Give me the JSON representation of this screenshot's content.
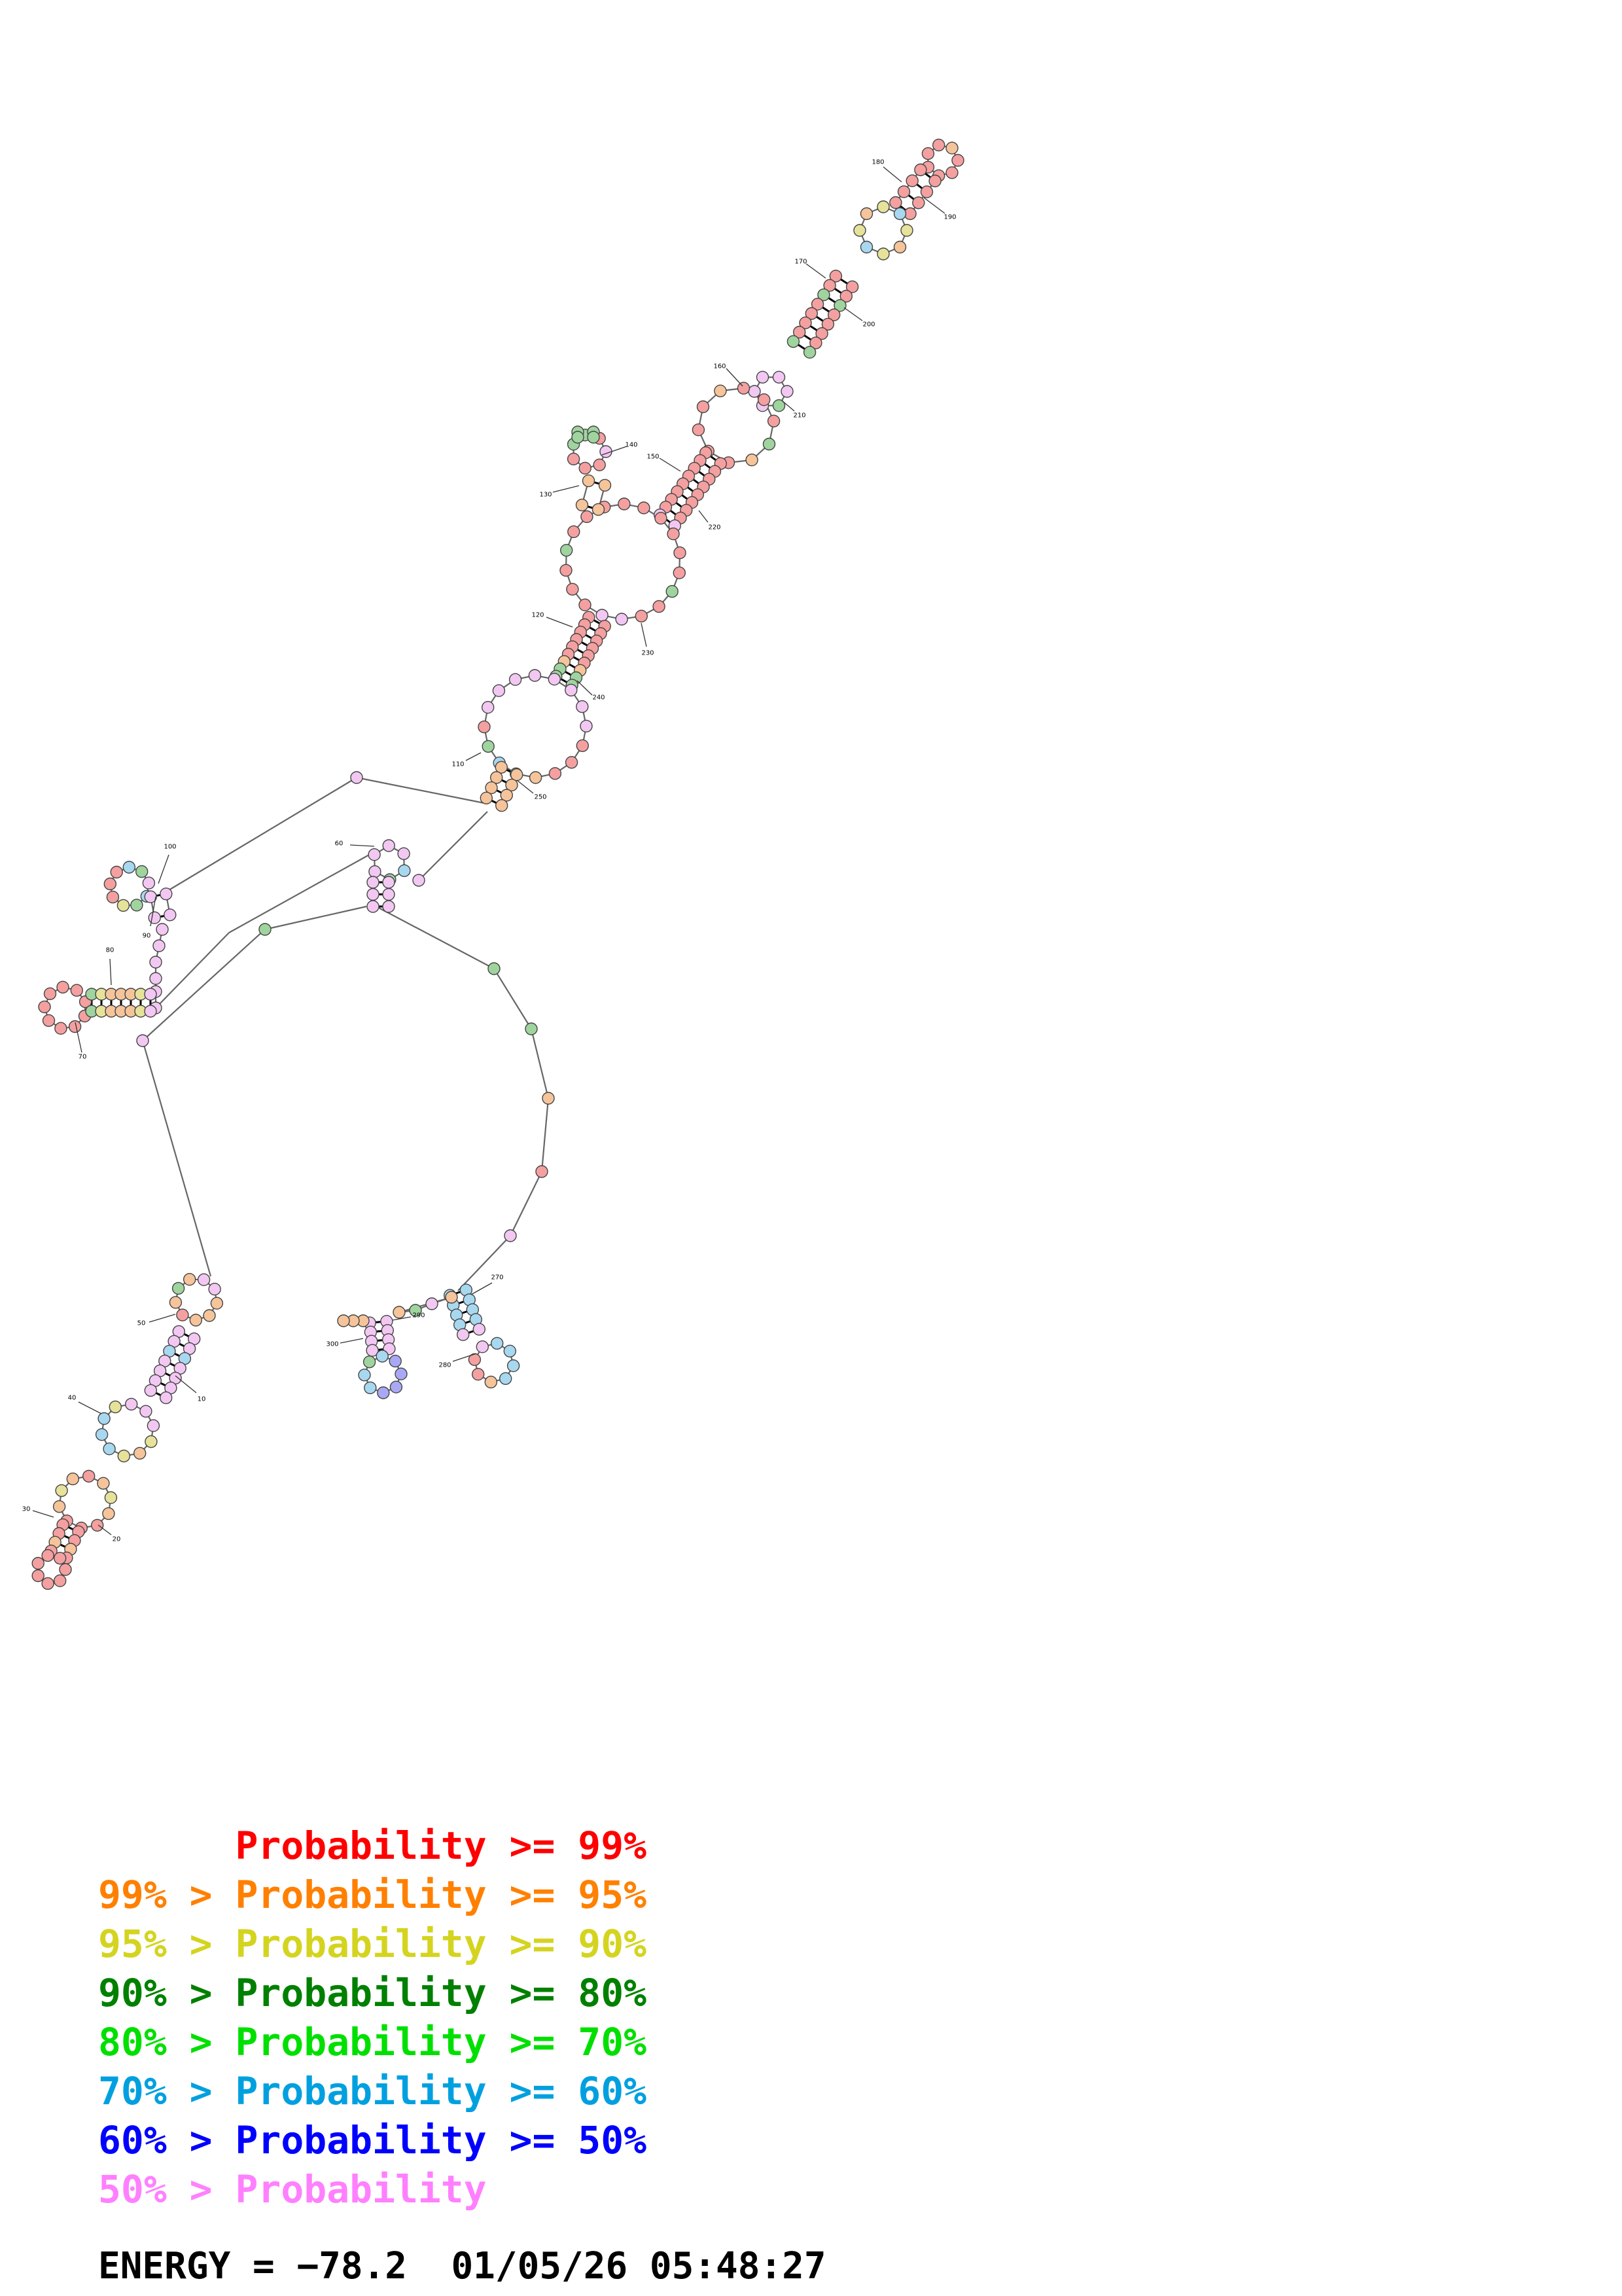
{
  "legend": [
    {
      "text": "      Probability >= 99%",
      "color": "#ff0000"
    },
    {
      "text": "99% > Probability >= 95%",
      "color": "#ff8000"
    },
    {
      "text": "95% > Probability >= 90%",
      "color": "#d4d420"
    },
    {
      "text": "90% > Probability >= 80%",
      "color": "#008000"
    },
    {
      "text": "80% > Probability >= 70%",
      "color": "#00e000"
    },
    {
      "text": "70% > Probability >= 60%",
      "color": "#00a0e0"
    },
    {
      "text": "60% > Probability >= 50%",
      "color": "#0000ff"
    },
    {
      "text": "50% > Probability",
      "color": "#ff80ff"
    }
  ],
  "footer": {
    "energy_label": "ENERGY = ",
    "energy_value": "−78.2",
    "timestamp": "01/05/26 05:48:27"
  },
  "position_labels": [
    "10",
    "20",
    "30",
    "40",
    "50",
    "60",
    "70",
    "80",
    "90",
    "100",
    "110",
    "120",
    "130",
    "140",
    "150",
    "160",
    "170",
    "180",
    "190",
    "200",
    "210",
    "220",
    "230",
    "240",
    "250",
    "270",
    "280",
    "290",
    "300"
  ],
  "fill_colors": {
    "p99": "#f4a0a0",
    "p95": "#f6c49a",
    "p90": "#e6e29a",
    "p80": "#9fd49f",
    "p70": "#b0f0b0",
    "p60": "#a8d8f0",
    "p50": "#a8a8f4",
    "plow": "#f2c8f2"
  }
}
